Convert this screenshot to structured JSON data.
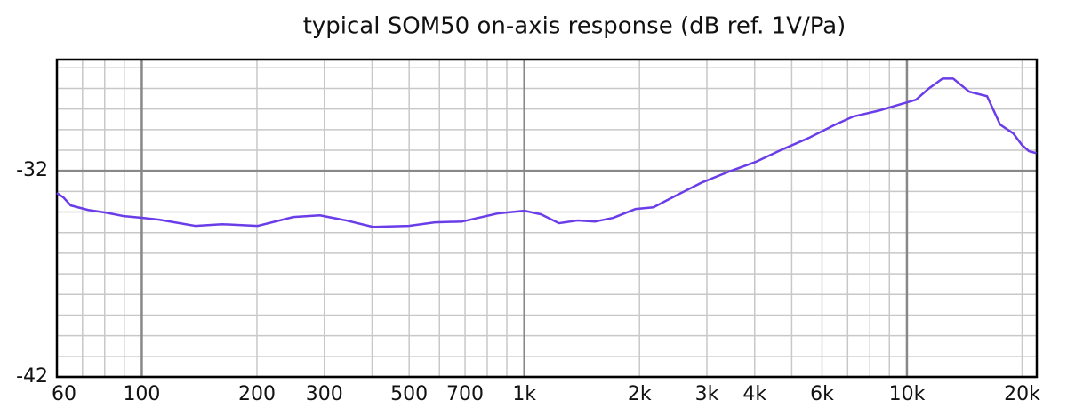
{
  "chart_data": {
    "type": "line",
    "title": "typical SOM50 on-axis response (dB ref. 1V/Pa)",
    "x_scale": "log",
    "grid": true,
    "xlim": [
      60,
      21850
    ],
    "ylim": [
      -42,
      -26.6
    ],
    "xticks": [
      60,
      100,
      200,
      300,
      500,
      700,
      {
        "value": 1000,
        "label": "1k"
      },
      {
        "value": 2000,
        "label": "2k"
      },
      {
        "value": 3000,
        "label": "3k"
      },
      {
        "value": 4000,
        "label": "4k"
      },
      {
        "value": 6000,
        "label": "6k"
      },
      {
        "value": 10000,
        "label": "10k"
      },
      {
        "value": 20000,
        "label": "20k"
      }
    ],
    "x_minor_ticks": [
      70,
      80,
      90,
      400,
      600,
      800,
      900,
      5000,
      7000,
      8000,
      9000
    ],
    "yticks": [
      -42,
      -32
    ],
    "y_minor_ticks": [
      -41,
      -40,
      -39,
      -38,
      -37,
      -36,
      -35,
      -34,
      -33,
      -31,
      -30,
      -29,
      -28,
      -27
    ],
    "x": [
      60,
      62.4,
      65.2,
      72.5,
      80.7,
      89.8,
      100,
      111,
      138,
      162,
      201,
      249,
      292,
      343,
      402,
      499,
      584,
      688,
      851,
      1000,
      1106,
      1231,
      1376,
      1533,
      1707,
      1954,
      2174,
      2485,
      2917,
      3424,
      4020,
      4714,
      5532,
      6493,
      7229,
      8481,
      9464,
      10562,
      11430,
      12394,
      13200,
      14550,
      16200,
      17530,
      18980,
      19990,
      20860,
      21790
    ],
    "series": [
      {
        "color": "#6a3de8",
        "values": [
          -33.08,
          -33.29,
          -33.68,
          -33.9,
          -34.03,
          -34.2,
          -34.28,
          -34.37,
          -34.67,
          -34.59,
          -34.67,
          -34.24,
          -34.16,
          -34.41,
          -34.72,
          -34.67,
          -34.5,
          -34.46,
          -34.07,
          -33.94,
          -34.11,
          -34.54,
          -34.41,
          -34.46,
          -34.28,
          -33.85,
          -33.77,
          -33.21,
          -32.56,
          -32.04,
          -31.57,
          -30.97,
          -30.41,
          -29.76,
          -29.37,
          -29.07,
          -28.81,
          -28.55,
          -27.99,
          -27.52,
          -27.52,
          -28.16,
          -28.38,
          -29.76,
          -30.19,
          -30.75,
          -31.05,
          -31.14
        ]
      }
    ]
  }
}
